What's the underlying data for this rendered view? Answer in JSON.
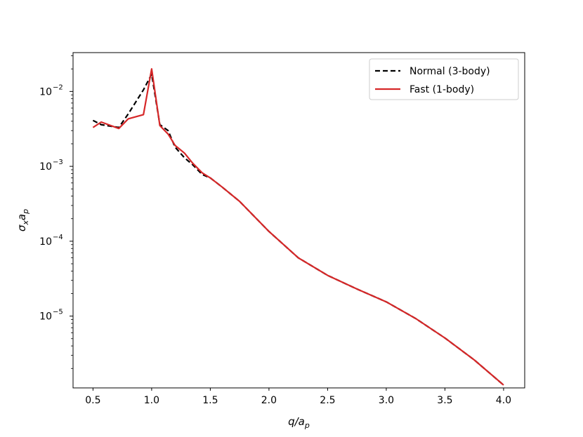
{
  "chart_data": {
    "type": "line",
    "title": "",
    "xlabel": "q/a_p",
    "ylabel": "σ_x a_p",
    "x_scale": "linear",
    "y_scale": "log",
    "xlim": [
      0.33,
      4.18
    ],
    "ylim": [
      1.1e-06,
      0.033
    ],
    "x_ticks": [
      0.5,
      1.0,
      1.5,
      2.0,
      2.5,
      3.0,
      3.5,
      4.0
    ],
    "x_tick_labels": [
      "0.5",
      "1.0",
      "1.5",
      "2.0",
      "2.5",
      "3.0",
      "3.5",
      "4.0"
    ],
    "y_ticks": [
      1e-05,
      0.0001,
      0.001,
      0.01
    ],
    "y_tick_labels": [
      {
        "base": "10",
        "exp": "−5"
      },
      {
        "base": "10",
        "exp": "−4"
      },
      {
        "base": "10",
        "exp": "−3"
      },
      {
        "base": "10",
        "exp": "−2"
      }
    ],
    "grid": false,
    "legend_position": "top-right",
    "series": [
      {
        "name": "Normal (3-body)",
        "color": "#000000",
        "style": "dashed",
        "x": [
          0.5,
          0.57,
          0.72,
          0.8,
          0.93,
          1.0,
          1.07,
          1.14,
          1.2,
          1.28,
          1.35,
          1.43,
          1.5,
          1.6,
          1.75,
          2.0,
          2.25,
          2.5,
          2.75,
          3.0,
          3.25,
          3.5,
          3.75,
          4.0
        ],
        "y": [
          0.0041,
          0.0036,
          0.0033,
          0.005,
          0.0105,
          0.017,
          0.0036,
          0.003,
          0.0018,
          0.0013,
          0.00105,
          0.00078,
          0.0007,
          0.00053,
          0.00034,
          0.000135,
          6e-05,
          3.5e-05,
          2.3e-05,
          1.55e-05,
          9.3e-06,
          5.1e-06,
          2.6e-06,
          1.2e-06
        ]
      },
      {
        "name": "Fast (1-body)",
        "color": "#d62728",
        "style": "solid",
        "x": [
          0.5,
          0.57,
          0.72,
          0.8,
          0.93,
          1.0,
          1.07,
          1.14,
          1.2,
          1.28,
          1.35,
          1.43,
          1.5,
          1.6,
          1.75,
          2.0,
          2.25,
          2.5,
          2.75,
          3.0,
          3.25,
          3.5,
          3.75,
          4.0
        ],
        "y": [
          0.0033,
          0.0039,
          0.0032,
          0.0043,
          0.0049,
          0.02,
          0.0035,
          0.0027,
          0.0019,
          0.0015,
          0.0011,
          0.00082,
          0.0007,
          0.00053,
          0.00034,
          0.000135,
          6e-05,
          3.5e-05,
          2.3e-05,
          1.55e-05,
          9.3e-06,
          5.1e-06,
          2.6e-06,
          1.2e-06
        ]
      }
    ]
  }
}
